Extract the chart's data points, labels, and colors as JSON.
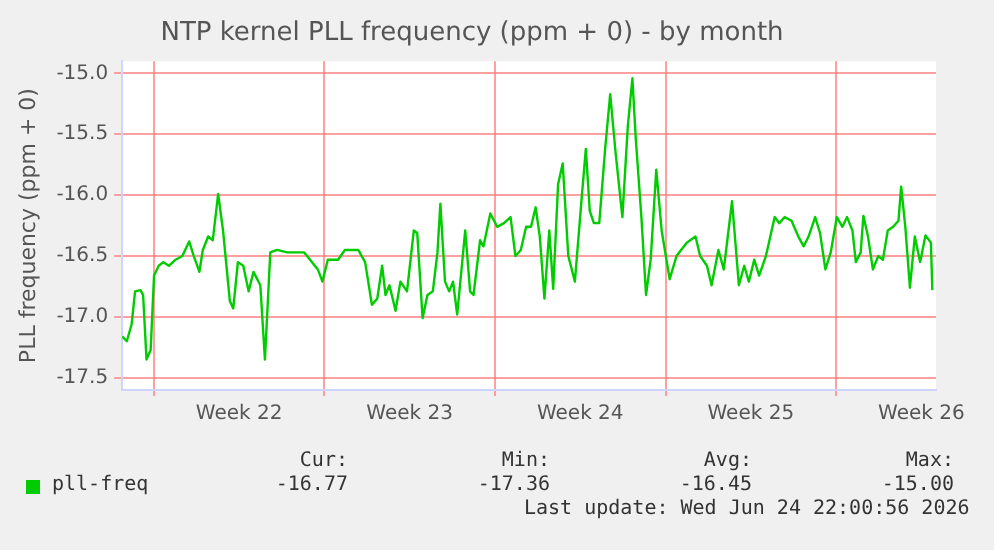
{
  "chart_data": {
    "type": "line",
    "title": "NTP kernel PLL frequency (ppm + 0) - by month",
    "ylabel": "PLL frequency (ppm + 0)",
    "xlim": [
      "2026-05-22T16:48",
      "2026-06-25T02:24"
    ],
    "xticks": [
      {
        "value": "2026-05-24",
        "label": null
      },
      {
        "value": "2026-05-27T12:00",
        "label": "Week 22"
      },
      {
        "value": "2026-05-31",
        "label": null
      },
      {
        "value": "2026-06-03T12:00",
        "label": "Week 23"
      },
      {
        "value": "2026-06-07",
        "label": null
      },
      {
        "value": "2026-06-10T12:00",
        "label": "Week 24"
      },
      {
        "value": "2026-06-14",
        "label": null
      },
      {
        "value": "2026-06-17T12:00",
        "label": "Week 25"
      },
      {
        "value": "2026-06-21",
        "label": null
      },
      {
        "value": "2026-06-24T12:00",
        "label": "Week 26"
      }
    ],
    "ylim": [
      -17.6,
      -14.9
    ],
    "yticks": [
      {
        "value": -17.5,
        "label": "-17.5"
      },
      {
        "value": -17,
        "label": "-17.0"
      },
      {
        "value": -16.5,
        "label": "-16.5"
      },
      {
        "value": -16,
        "label": "-16.0"
      },
      {
        "value": -15.5,
        "label": "-15.5"
      },
      {
        "value": -15,
        "label": "-15.0"
      }
    ],
    "grid": true,
    "legend": "bottom",
    "marker": "none",
    "line_style": "solid",
    "series": [
      {
        "name": "pll-freq",
        "color": "#00cc00",
        "x": [
          "2026-05-22T16:48",
          "2026-05-22T21:22",
          "2026-05-23T02:10",
          "2026-05-23T05:31",
          "2026-05-23T10:48",
          "2026-05-23T13:26",
          "2026-05-23T16:48",
          "2026-05-23T20:53",
          "2026-05-24T00:14",
          "2026-05-24T04:48",
          "2026-05-24T09:22",
          "2026-05-24T14:53",
          "2026-05-24T21:22",
          "2026-05-25T04:05",
          "2026-05-25T10:48",
          "2026-05-25T15:22",
          "2026-05-25T20:53",
          "2026-05-26T00:14",
          "2026-05-26T05:31",
          "2026-05-26T10:05",
          "2026-05-26T15:22",
          "2026-05-26T20:10",
          "2026-05-27T02:53",
          "2026-05-27T06:14",
          "2026-05-27T10:48",
          "2026-05-27T16:05",
          "2026-05-27T21:22",
          "2026-05-28T02:10",
          "2026-05-28T08:53",
          "2026-05-28T13:26",
          "2026-05-28T18:43",
          "2026-05-29T01:26",
          "2026-05-29T11:31",
          "2026-05-30T04:05",
          "2026-05-30T17:31",
          "2026-05-30T22:05",
          "2026-05-31T03:22",
          "2026-05-31T13:26",
          "2026-05-31T20:10",
          "2026-06-01T09:22",
          "2026-06-01T16:05",
          "2026-06-01T22:48",
          "2026-06-02T04:05",
          "2026-06-02T08:53",
          "2026-06-02T12:14",
          "2026-06-02T16:05",
          "2026-06-02T22:05",
          "2026-06-03T02:53",
          "2026-06-03T09:22",
          "2026-06-03T16:05",
          "2026-06-03T19:26",
          "2026-06-04T00:43",
          "2026-06-04T05:31",
          "2026-06-04T10:48",
          "2026-06-04T15:22",
          "2026-06-04T18:14",
          "2026-06-04T22:48",
          "2026-06-05T02:53",
          "2026-06-05T06:43",
          "2026-06-05T10:48",
          "2026-06-05T18:43",
          "2026-06-05T23:31",
          "2026-06-06T02:53",
          "2026-06-06T09:22",
          "2026-06-06T12:43",
          "2026-06-06T19:26",
          "2026-06-07T02:10",
          "2026-06-07T08:53",
          "2026-06-07T15:22",
          "2026-06-07T20:10",
          "2026-06-08T01:26",
          "2026-06-08T06:43",
          "2026-06-08T11:31",
          "2026-06-08T16:05",
          "2026-06-08T20:10",
          "2026-06-09T00:43",
          "2026-06-09T05:31",
          "2026-06-09T09:22",
          "2026-06-09T14:10",
          "2026-06-09T18:43",
          "2026-06-10T00:14",
          "2026-06-10T06:43",
          "2026-06-10T13:26",
          "2026-06-10T17:31",
          "2026-06-10T21:22",
          "2026-06-11T01:26",
          "2026-06-11T06:43",
          "2026-06-11T12:43",
          "2026-06-11T17:31",
          "2026-06-11T22:48",
          "2026-06-12T05:31",
          "2026-06-12T10:48",
          "2026-06-12T15:22",
          "2026-06-12T18:43",
          "2026-06-13T00:14",
          "2026-06-13T04:48",
          "2026-06-13T09:22",
          "2026-06-13T14:53",
          "2026-06-13T20:10",
          "2026-06-14T04:05",
          "2026-06-14T10:48",
          "2026-06-14T20:53",
          "2026-06-15T05:31",
          "2026-06-15T10:05",
          "2026-06-15T16:48",
          "2026-06-15T21:22",
          "2026-06-16T04:05",
          "2026-06-16T09:22",
          "2026-06-16T17:31",
          "2026-06-17T00:14",
          "2026-06-17T05:31",
          "2026-06-17T10:05",
          "2026-06-17T15:22",
          "2026-06-17T20:10",
          "2026-06-18T02:53",
          "2026-06-18T11:31",
          "2026-06-18T16:05",
          "2026-06-18T21:22",
          "2026-06-19T04:05",
          "2026-06-19T10:48",
          "2026-06-19T16:05",
          "2026-06-19T20:53",
          "2026-06-20T03:22",
          "2026-06-20T08:10",
          "2026-06-20T13:26",
          "2026-06-20T18:43",
          "2026-06-21T00:43",
          "2026-06-21T06:14",
          "2026-06-21T10:48",
          "2026-06-21T16:05",
          "2026-06-21T19:26",
          "2026-06-22T00:14",
          "2026-06-22T02:53",
          "2026-06-22T07:26",
          "2026-06-22T12:14",
          "2026-06-22T17:31",
          "2026-06-22T22:05",
          "2026-06-23T02:53",
          "2026-06-23T08:10",
          "2026-06-23T13:26",
          "2026-06-23T16:05",
          "2026-06-23T20:10",
          "2026-06-24T00:43",
          "2026-06-24T05:31",
          "2026-06-24T10:48",
          "2026-06-24T16:05",
          "2026-06-24T21:22",
          "2026-06-24T22:48"
        ],
        "values": [
          -17.16,
          -17.2,
          -17.06,
          -16.79,
          -16.78,
          -16.82,
          -17.35,
          -17.27,
          -16.66,
          -16.58,
          -16.55,
          -16.58,
          -16.53,
          -16.5,
          -16.38,
          -16.5,
          -16.63,
          -16.45,
          -16.34,
          -16.37,
          -15.99,
          -16.29,
          -16.87,
          -16.93,
          -16.55,
          -16.58,
          -16.79,
          -16.63,
          -16.74,
          -17.35,
          -16.47,
          -16.45,
          -16.47,
          -16.47,
          -16.61,
          -16.71,
          -16.53,
          -16.53,
          -16.45,
          -16.45,
          -16.55,
          -16.9,
          -16.85,
          -16.58,
          -16.82,
          -16.74,
          -16.95,
          -16.71,
          -16.79,
          -16.29,
          -16.31,
          -17.01,
          -16.82,
          -16.79,
          -16.47,
          -16.07,
          -16.71,
          -16.79,
          -16.71,
          -16.98,
          -16.29,
          -16.79,
          -16.82,
          -16.37,
          -16.42,
          -16.15,
          -16.26,
          -16.23,
          -16.18,
          -16.5,
          -16.45,
          -16.26,
          -16.26,
          -16.1,
          -16.34,
          -16.85,
          -16.29,
          -16.77,
          -15.91,
          -15.74,
          -16.5,
          -16.71,
          -16.02,
          -15.62,
          -16.13,
          -16.23,
          -16.23,
          -15.6,
          -15.17,
          -15.65,
          -16.18,
          -15.44,
          -15.04,
          -15.54,
          -16.18,
          -16.82,
          -16.53,
          -15.79,
          -16.29,
          -16.69,
          -16.5,
          -16.39,
          -16.34,
          -16.5,
          -16.58,
          -16.74,
          -16.45,
          -16.61,
          -16.05,
          -16.74,
          -16.58,
          -16.71,
          -16.53,
          -16.66,
          -16.5,
          -16.18,
          -16.23,
          -16.18,
          -16.21,
          -16.34,
          -16.42,
          -16.34,
          -16.18,
          -16.31,
          -16.61,
          -16.47,
          -16.18,
          -16.26,
          -16.18,
          -16.29,
          -16.55,
          -16.47,
          -16.17,
          -16.34,
          -16.61,
          -16.5,
          -16.53,
          -16.29,
          -16.26,
          -16.21,
          -15.93,
          -16.26,
          -16.76,
          -16.34,
          -16.55,
          -16.33,
          -16.39,
          -16.78
        ]
      }
    ],
    "annotations": [
      "Cur:",
      "Min:",
      "Avg:",
      "Max:",
      "-16.77",
      "-17.36",
      "-16.45",
      "-15.00",
      "Last update: Wed Jun 24 22:00:56 2026"
    ]
  }
}
